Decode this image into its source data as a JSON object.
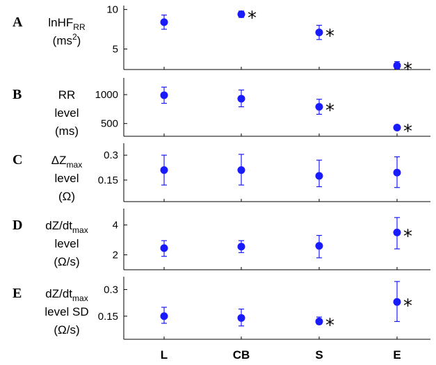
{
  "chart_data": {
    "type": "scatter",
    "categories": [
      "L",
      "CB",
      "S",
      "E"
    ],
    "significance_marker": "*",
    "point_color": "#1a1aff",
    "panels": [
      {
        "letter": "A",
        "ylabel_lines": [
          "lnHF",
          "(ms",
          ")"
        ],
        "ylabel_sub": "RR",
        "ylabel_sup": "2",
        "yticks": [
          5,
          10
        ],
        "ylim": [
          2.4,
          10.5
        ],
        "points": [
          {
            "category": "L",
            "mean": 8.4,
            "lo": 7.5,
            "hi": 9.3,
            "significant": false
          },
          {
            "category": "CB",
            "mean": 9.4,
            "lo": 9.0,
            "hi": 9.8,
            "significant": true
          },
          {
            "category": "S",
            "mean": 7.1,
            "lo": 6.2,
            "hi": 8.0,
            "significant": true
          },
          {
            "category": "E",
            "mean": 2.9,
            "lo": 2.5,
            "hi": 3.4,
            "significant": true
          }
        ]
      },
      {
        "letter": "B",
        "ylabel_lines": [
          "RR",
          "level",
          "(ms)"
        ],
        "yticks": [
          500,
          1000
        ],
        "ylim": [
          280,
          1290
        ],
        "points": [
          {
            "category": "L",
            "mean": 990,
            "lo": 850,
            "hi": 1130,
            "significant": false
          },
          {
            "category": "CB",
            "mean": 930,
            "lo": 790,
            "hi": 1080,
            "significant": false
          },
          {
            "category": "S",
            "mean": 790,
            "lo": 660,
            "hi": 920,
            "significant": true
          },
          {
            "category": "E",
            "mean": 430,
            "lo": 400,
            "hi": 470,
            "significant": true
          }
        ]
      },
      {
        "letter": "C",
        "ylabel_lines": [
          "ΔZ",
          "level",
          "(Ω)"
        ],
        "ylabel_sub": "max",
        "yticks": [
          0.15,
          0.3
        ],
        "ytick_labels": [
          "0.15",
          "0.3"
        ],
        "ylim": [
          0.02,
          0.372
        ],
        "points": [
          {
            "category": "L",
            "mean": 0.21,
            "lo": 0.12,
            "hi": 0.3,
            "significant": false
          },
          {
            "category": "CB",
            "mean": 0.21,
            "lo": 0.12,
            "hi": 0.305,
            "significant": false
          },
          {
            "category": "S",
            "mean": 0.175,
            "lo": 0.11,
            "hi": 0.27,
            "significant": false
          },
          {
            "category": "E",
            "mean": 0.195,
            "lo": 0.105,
            "hi": 0.29,
            "significant": false
          }
        ]
      },
      {
        "letter": "D",
        "ylabel_lines": [
          "dZ/dt",
          "level",
          "(Ω/s)"
        ],
        "ylabel_sub": "max",
        "yticks": [
          2,
          4
        ],
        "ylim": [
          1.0,
          5.1
        ],
        "points": [
          {
            "category": "L",
            "mean": 2.45,
            "lo": 1.9,
            "hi": 2.95,
            "significant": false
          },
          {
            "category": "CB",
            "mean": 2.55,
            "lo": 2.15,
            "hi": 2.95,
            "significant": false
          },
          {
            "category": "S",
            "mean": 2.6,
            "lo": 1.8,
            "hi": 3.3,
            "significant": false
          },
          {
            "category": "E",
            "mean": 3.5,
            "lo": 2.4,
            "hi": 4.5,
            "significant": true
          }
        ]
      },
      {
        "letter": "E",
        "ylabel_lines": [
          "dZ/dt",
          "level SD",
          "(Ω/s)"
        ],
        "ylabel_sub": "max",
        "yticks": [
          0.15,
          0.3
        ],
        "ytick_labels": [
          "0.15",
          "0.3"
        ],
        "ylim": [
          0.02,
          0.372
        ],
        "points": [
          {
            "category": "L",
            "mean": 0.15,
            "lo": 0.11,
            "hi": 0.2,
            "significant": false
          },
          {
            "category": "CB",
            "mean": 0.14,
            "lo": 0.095,
            "hi": 0.19,
            "significant": false
          },
          {
            "category": "S",
            "mean": 0.12,
            "lo": 0.105,
            "hi": 0.145,
            "significant": true
          },
          {
            "category": "E",
            "mean": 0.23,
            "lo": 0.12,
            "hi": 0.345,
            "significant": true
          }
        ]
      }
    ]
  }
}
